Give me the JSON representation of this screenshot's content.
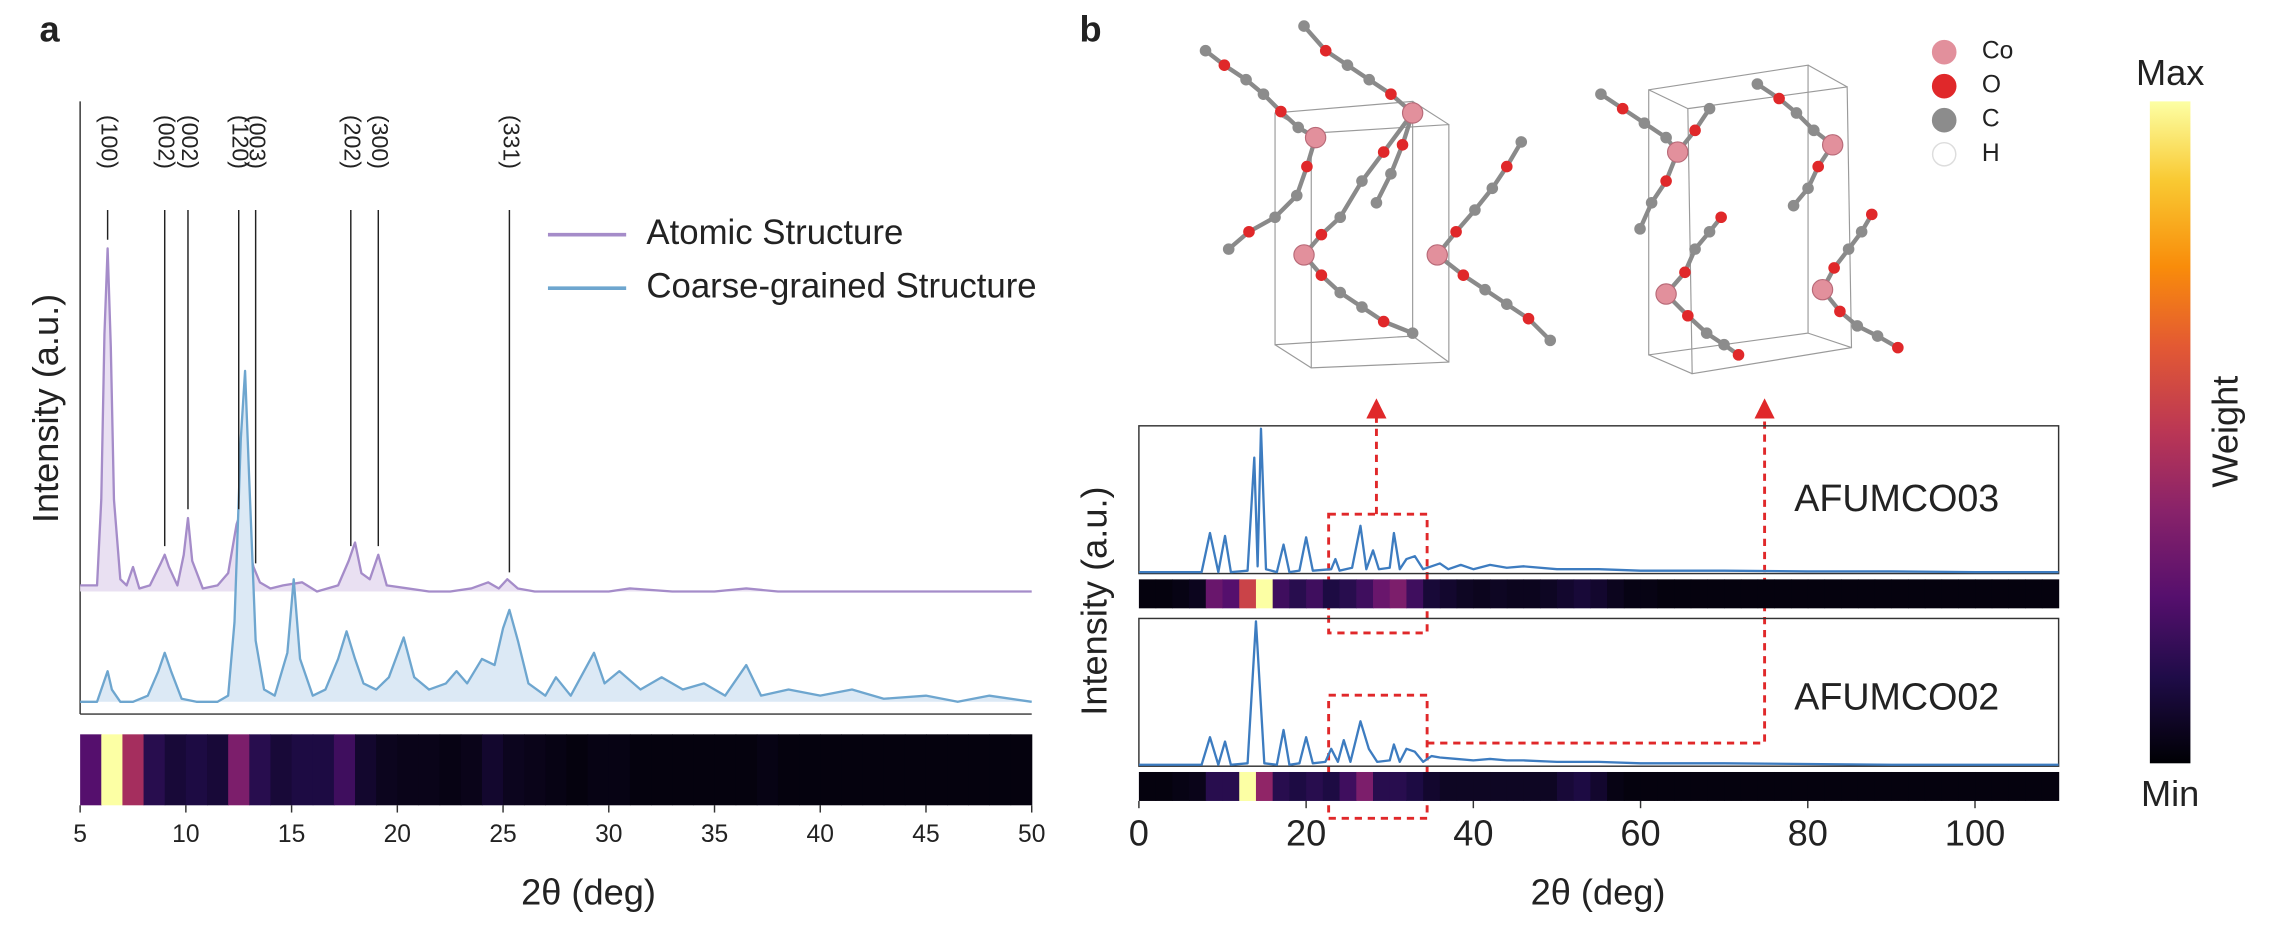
{
  "chart_data": [
    {
      "type": "line",
      "label": "a",
      "ylabel": "Intensity (a.u.)",
      "xlabel": "2θ (deg)",
      "xlim": [
        5,
        50
      ],
      "ylim": [
        0,
        1
      ],
      "xticks": [
        5,
        10,
        15,
        20,
        25,
        30,
        35,
        40,
        45,
        50
      ],
      "colormap": "inferno",
      "series": [
        {
          "name": "Atomic Structure",
          "color": "#a58cc9",
          "fill_color": "#e9e0f2",
          "x": [
            5,
            5.8,
            6.0,
            6.15,
            6.3,
            6.45,
            6.6,
            6.9,
            7.2,
            7.5,
            7.8,
            8.3,
            8.8,
            9.0,
            9.2,
            9.6,
            9.9,
            10.1,
            10.3,
            10.8,
            11.5,
            12.0,
            12.4,
            12.6,
            12.9,
            13.2,
            13.5,
            14.0,
            14.6,
            15.5,
            16.2,
            17.2,
            17.7,
            18.0,
            18.3,
            18.7,
            19.1,
            19.5,
            20.5,
            21.5,
            22.5,
            23.5,
            24.3,
            24.8,
            25.2,
            25.7,
            26.5,
            28,
            30,
            31,
            33,
            35,
            36.5,
            38,
            40,
            42,
            44,
            46,
            48,
            50
          ],
          "values": [
            0.21,
            0.21,
            0.35,
            0.62,
            0.76,
            0.6,
            0.35,
            0.22,
            0.21,
            0.24,
            0.205,
            0.21,
            0.245,
            0.26,
            0.24,
            0.21,
            0.26,
            0.32,
            0.25,
            0.205,
            0.21,
            0.23,
            0.31,
            0.33,
            0.28,
            0.24,
            0.215,
            0.205,
            0.21,
            0.215,
            0.2,
            0.21,
            0.25,
            0.28,
            0.23,
            0.22,
            0.26,
            0.21,
            0.205,
            0.2,
            0.2,
            0.205,
            0.215,
            0.205,
            0.22,
            0.205,
            0.2,
            0.2,
            0.2,
            0.205,
            0.2,
            0.2,
            0.205,
            0.2,
            0.2,
            0.2,
            0.2,
            0.2,
            0.2,
            0.2
          ]
        },
        {
          "name": "Coarse-grained Structure",
          "color": "#6ea6cf",
          "fill_color": "#dce9f5",
          "x": [
            5,
            5.8,
            6.1,
            6.3,
            6.5,
            6.9,
            7.5,
            8.2,
            8.7,
            9.0,
            9.3,
            9.8,
            10.5,
            11.5,
            12.0,
            12.3,
            12.6,
            12.8,
            13.0,
            13.3,
            13.7,
            14.2,
            14.8,
            15.1,
            15.4,
            16.0,
            16.6,
            17.2,
            17.6,
            18.0,
            18.4,
            19.0,
            19.6,
            20.3,
            20.8,
            21.5,
            22.3,
            22.8,
            23.3,
            24.0,
            24.6,
            25.0,
            25.3,
            25.7,
            26.2,
            27.0,
            27.5,
            28.2,
            29.3,
            29.8,
            30.5,
            31.5,
            32.5,
            33.5,
            34.5,
            35.5,
            36.5,
            37.2,
            38.5,
            40,
            41.5,
            43,
            45,
            46.5,
            48,
            50
          ],
          "values": [
            0.02,
            0.02,
            0.05,
            0.07,
            0.04,
            0.02,
            0.02,
            0.03,
            0.07,
            0.1,
            0.07,
            0.025,
            0.02,
            0.02,
            0.03,
            0.15,
            0.45,
            0.56,
            0.38,
            0.12,
            0.04,
            0.03,
            0.1,
            0.22,
            0.09,
            0.03,
            0.04,
            0.09,
            0.135,
            0.09,
            0.05,
            0.04,
            0.06,
            0.125,
            0.06,
            0.04,
            0.05,
            0.07,
            0.05,
            0.09,
            0.08,
            0.14,
            0.17,
            0.12,
            0.05,
            0.03,
            0.06,
            0.03,
            0.1,
            0.05,
            0.07,
            0.04,
            0.06,
            0.04,
            0.05,
            0.03,
            0.08,
            0.03,
            0.04,
            0.03,
            0.04,
            0.025,
            0.03,
            0.02,
            0.03,
            0.02
          ]
        }
      ],
      "annotations": [
        {
          "label": "(100)",
          "x": 6.3
        },
        {
          "label": "(002)",
          "x": 9.0
        },
        {
          "label": "(002)",
          "x": 10.1
        },
        {
          "label": "(120)",
          "x": 12.5
        },
        {
          "label": "(003)",
          "x": 13.3
        },
        {
          "label": "(202)",
          "x": 17.8
        },
        {
          "label": "(300)",
          "x": 19.1
        },
        {
          "label": "(331)",
          "x": 25.3
        }
      ],
      "heatmap": {
        "bins": [
          5,
          6,
          7,
          8,
          9,
          10,
          11,
          12,
          13,
          14,
          15,
          16,
          17,
          18,
          19,
          20,
          21,
          22,
          23,
          24,
          25,
          26,
          27,
          28,
          29,
          30,
          31,
          32,
          33,
          34,
          35,
          36,
          37,
          38,
          39,
          40,
          41,
          42,
          43,
          44,
          45,
          46,
          47,
          48,
          49,
          50
        ],
        "values": [
          0.25,
          1.0,
          0.45,
          0.15,
          0.1,
          0.12,
          0.1,
          0.35,
          0.15,
          0.1,
          0.12,
          0.12,
          0.2,
          0.08,
          0.05,
          0.04,
          0.04,
          0.03,
          0.04,
          0.08,
          0.05,
          0.04,
          0.03,
          0.02,
          0.03,
          0.03,
          0.02,
          0.02,
          0.02,
          0.02,
          0.02,
          0.02,
          0.03,
          0.02,
          0.02,
          0.02,
          0.02,
          0.02,
          0.02,
          0.02,
          0.02,
          0.02,
          0.02,
          0.02,
          0.02
        ]
      }
    },
    {
      "type": "line",
      "label": "b",
      "ylabel": "Intensity (a.u.)",
      "name": "AFUMCO03",
      "xlim": [
        0,
        110
      ],
      "ylim": [
        0,
        1.02
      ],
      "colormap": "inferno",
      "series": [
        {
          "color": "#3d7cc0",
          "x": [
            0,
            7.5,
            8.5,
            9.5,
            10.3,
            11,
            13,
            13.8,
            14.2,
            14.6,
            15.2,
            16.5,
            17.3,
            18,
            19.2,
            20,
            20.8,
            23,
            23.5,
            24,
            25.5,
            26.5,
            27.2,
            28,
            28.7,
            30,
            30.5,
            31.2,
            32,
            33,
            34,
            36,
            37,
            38.5,
            40,
            42,
            44,
            46,
            50,
            55,
            60,
            70,
            80,
            90,
            100,
            110
          ],
          "values": [
            0.01,
            0.01,
            0.28,
            0.01,
            0.26,
            0.01,
            0.02,
            0.8,
            0.05,
            1.0,
            0.03,
            0.01,
            0.2,
            0.01,
            0.02,
            0.25,
            0.02,
            0.03,
            0.1,
            0.02,
            0.04,
            0.33,
            0.03,
            0.16,
            0.03,
            0.04,
            0.28,
            0.03,
            0.1,
            0.12,
            0.03,
            0.07,
            0.03,
            0.06,
            0.03,
            0.06,
            0.04,
            0.05,
            0.03,
            0.03,
            0.02,
            0.02,
            0.015,
            0.015,
            0.01,
            0.01
          ]
        }
      ],
      "heatmap": {
        "bins": [
          0,
          2,
          4,
          6,
          8,
          10,
          12,
          14,
          16,
          18,
          20,
          22,
          24,
          26,
          28,
          30,
          32,
          34,
          36,
          38,
          40,
          42,
          44,
          46,
          48,
          50,
          52,
          54,
          56,
          58,
          60,
          62,
          64,
          66,
          68,
          70,
          72,
          74,
          76,
          78,
          80,
          82,
          84,
          86,
          88,
          90,
          92,
          94,
          96,
          98,
          100,
          102,
          104,
          106,
          108,
          110
        ],
        "values": [
          0.02,
          0.02,
          0.03,
          0.05,
          0.3,
          0.25,
          0.55,
          1.0,
          0.2,
          0.15,
          0.2,
          0.12,
          0.15,
          0.2,
          0.3,
          0.35,
          0.2,
          0.1,
          0.08,
          0.06,
          0.05,
          0.06,
          0.05,
          0.05,
          0.06,
          0.08,
          0.1,
          0.08,
          0.05,
          0.03,
          0.03,
          0.02,
          0.02,
          0.02,
          0.02,
          0.02,
          0.02,
          0.02,
          0.02,
          0.02,
          0.02,
          0.02,
          0.02,
          0.02,
          0.02,
          0.02,
          0.02,
          0.02,
          0.02,
          0.02,
          0.02,
          0.02,
          0.02,
          0.02,
          0.02
        ]
      }
    },
    {
      "type": "line",
      "name": "AFUMCO02",
      "xlabel": "2θ (deg)",
      "xlim": [
        0,
        110
      ],
      "ylim": [
        0,
        1.02
      ],
      "xticks": [
        0,
        20,
        40,
        60,
        80,
        100
      ],
      "colormap": "inferno",
      "series": [
        {
          "color": "#3d7cc0",
          "x": [
            0,
            7.5,
            8.5,
            9.5,
            10.3,
            11,
            13,
            14,
            15,
            16.5,
            17.3,
            18,
            19.2,
            20,
            20.8,
            22.3,
            23,
            23.8,
            24.5,
            25.3,
            26.5,
            27.5,
            28.5,
            30,
            30.5,
            31.2,
            32,
            33,
            34,
            35,
            36,
            38,
            40,
            42,
            44,
            46,
            50,
            55,
            60,
            70,
            80,
            90,
            100,
            110
          ],
          "values": [
            0.01,
            0.01,
            0.2,
            0.01,
            0.17,
            0.01,
            0.02,
            1.0,
            0.02,
            0.01,
            0.25,
            0.01,
            0.02,
            0.2,
            0.02,
            0.03,
            0.12,
            0.03,
            0.18,
            0.03,
            0.31,
            0.12,
            0.03,
            0.04,
            0.15,
            0.03,
            0.12,
            0.1,
            0.03,
            0.07,
            0.06,
            0.05,
            0.04,
            0.05,
            0.04,
            0.04,
            0.03,
            0.03,
            0.02,
            0.02,
            0.015,
            0.01,
            0.01,
            0.01
          ]
        }
      ],
      "heatmap": {
        "bins": [
          0,
          2,
          4,
          6,
          8,
          10,
          12,
          14,
          16,
          18,
          20,
          22,
          24,
          26,
          28,
          30,
          32,
          34,
          36,
          38,
          40,
          42,
          44,
          46,
          48,
          50,
          52,
          54,
          56,
          58,
          60,
          62,
          64,
          66,
          68,
          70,
          72,
          74,
          76,
          78,
          80,
          82,
          84,
          86,
          88,
          90,
          92,
          94,
          96,
          98,
          100,
          102,
          104,
          106,
          108,
          110
        ],
        "values": [
          0.02,
          0.02,
          0.03,
          0.04,
          0.15,
          0.15,
          1.0,
          0.4,
          0.15,
          0.12,
          0.15,
          0.12,
          0.2,
          0.35,
          0.15,
          0.15,
          0.12,
          0.08,
          0.06,
          0.06,
          0.06,
          0.06,
          0.06,
          0.06,
          0.06,
          0.1,
          0.12,
          0.08,
          0.03,
          0.02,
          0.02,
          0.02,
          0.02,
          0.02,
          0.02,
          0.02,
          0.02,
          0.02,
          0.02,
          0.02,
          0.02,
          0.02,
          0.02,
          0.02,
          0.02,
          0.02,
          0.02,
          0.02,
          0.02,
          0.02,
          0.02,
          0.02,
          0.02,
          0.02,
          0.02
        ]
      }
    }
  ],
  "atom_legend": [
    {
      "name": "Co",
      "color": "#e2909c"
    },
    {
      "name": "O",
      "color": "#e0282a"
    },
    {
      "name": "C",
      "color": "#8c8c8c"
    },
    {
      "name": "H",
      "color": "#ffffff"
    }
  ],
  "colorbar": {
    "title": "Weight",
    "max": "Max",
    "min": "Min",
    "colormap": "inferno"
  }
}
